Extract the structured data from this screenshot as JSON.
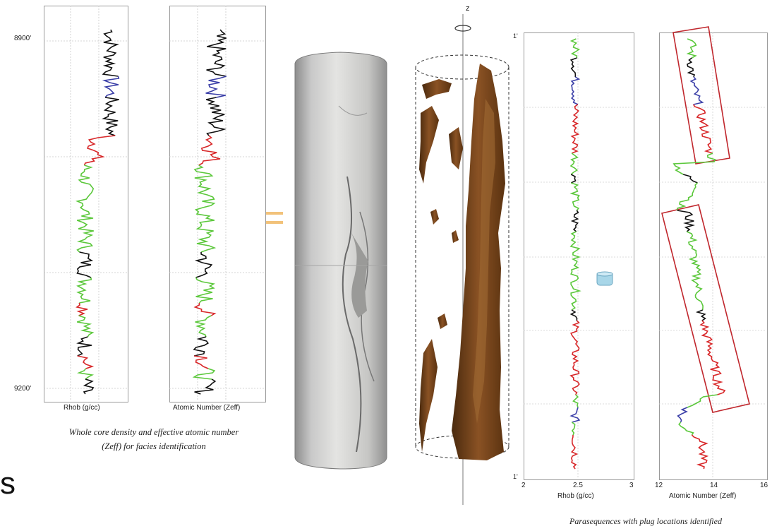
{
  "left_logs": {
    "depth_top": "8900'",
    "depth_bottom": "9200'",
    "track1_label": "Rhob (g/cc)",
    "track2_label": "Atomic Number (Zeff)",
    "caption_line1": "Whole core density and effective atomic number",
    "caption_line2": "(Zeff) for facies identification"
  },
  "axis_label": "z",
  "right_logs": {
    "depth_top": "1'",
    "depth_bottom": "1'",
    "track1_label": "Rhob (g/cc)",
    "track1_ticks": [
      "2",
      "2.5",
      "3"
    ],
    "track2_label": "Atomic Number (Zeff)",
    "track2_ticks": [
      "12",
      "14",
      "16"
    ],
    "caption": "Parasequences with plug locations identified"
  },
  "edge_text": "s",
  "colors": {
    "facies_black": "#111111",
    "facies_blue": "#3b3fa8",
    "facies_red": "#d8282a",
    "facies_green": "#5cc83c",
    "pore_brown": "#6b3a14",
    "box_red": "#c0272d"
  }
}
